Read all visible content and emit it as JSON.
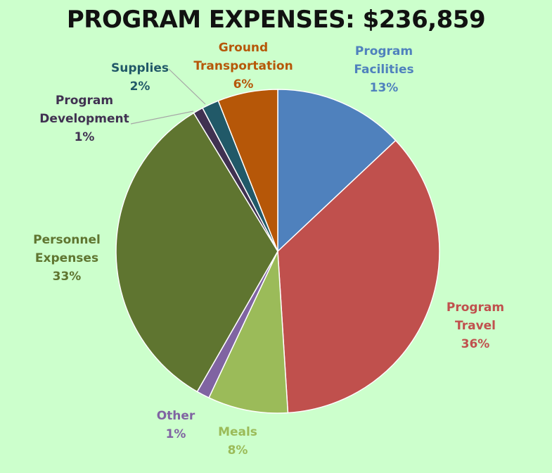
{
  "chart_data": {
    "type": "pie",
    "title": "PROGRAM EXPENSES: $236,859",
    "slices": [
      {
        "label_lines": [
          "Program",
          "Facilities"
        ],
        "pct_label": "13%",
        "value": 13,
        "color": "#4f81bd"
      },
      {
        "label_lines": [
          "Program",
          "Travel"
        ],
        "pct_label": "36%",
        "value": 36,
        "color": "#c0504d"
      },
      {
        "label_lines": [
          "Meals"
        ],
        "pct_label": "8%",
        "value": 8,
        "color": "#9bbb59"
      },
      {
        "label_lines": [
          "Other"
        ],
        "pct_label": "1%",
        "value": 1.3,
        "color": "#8064a2"
      },
      {
        "label_lines": [
          "Personnel",
          "Expenses"
        ],
        "pct_label": "33%",
        "value": 33,
        "color": "#5f7530"
      },
      {
        "label_lines": [
          "Program",
          "Development"
        ],
        "pct_label": "1%",
        "value": 1,
        "color": "#403151"
      },
      {
        "label_lines": [
          "Supplies"
        ],
        "pct_label": "2%",
        "value": 1.7,
        "color": "#215968"
      },
      {
        "label_lines": [
          "Ground",
          "Transportation"
        ],
        "pct_label": "6%",
        "value": 6,
        "color": "#b65708"
      }
    ]
  }
}
